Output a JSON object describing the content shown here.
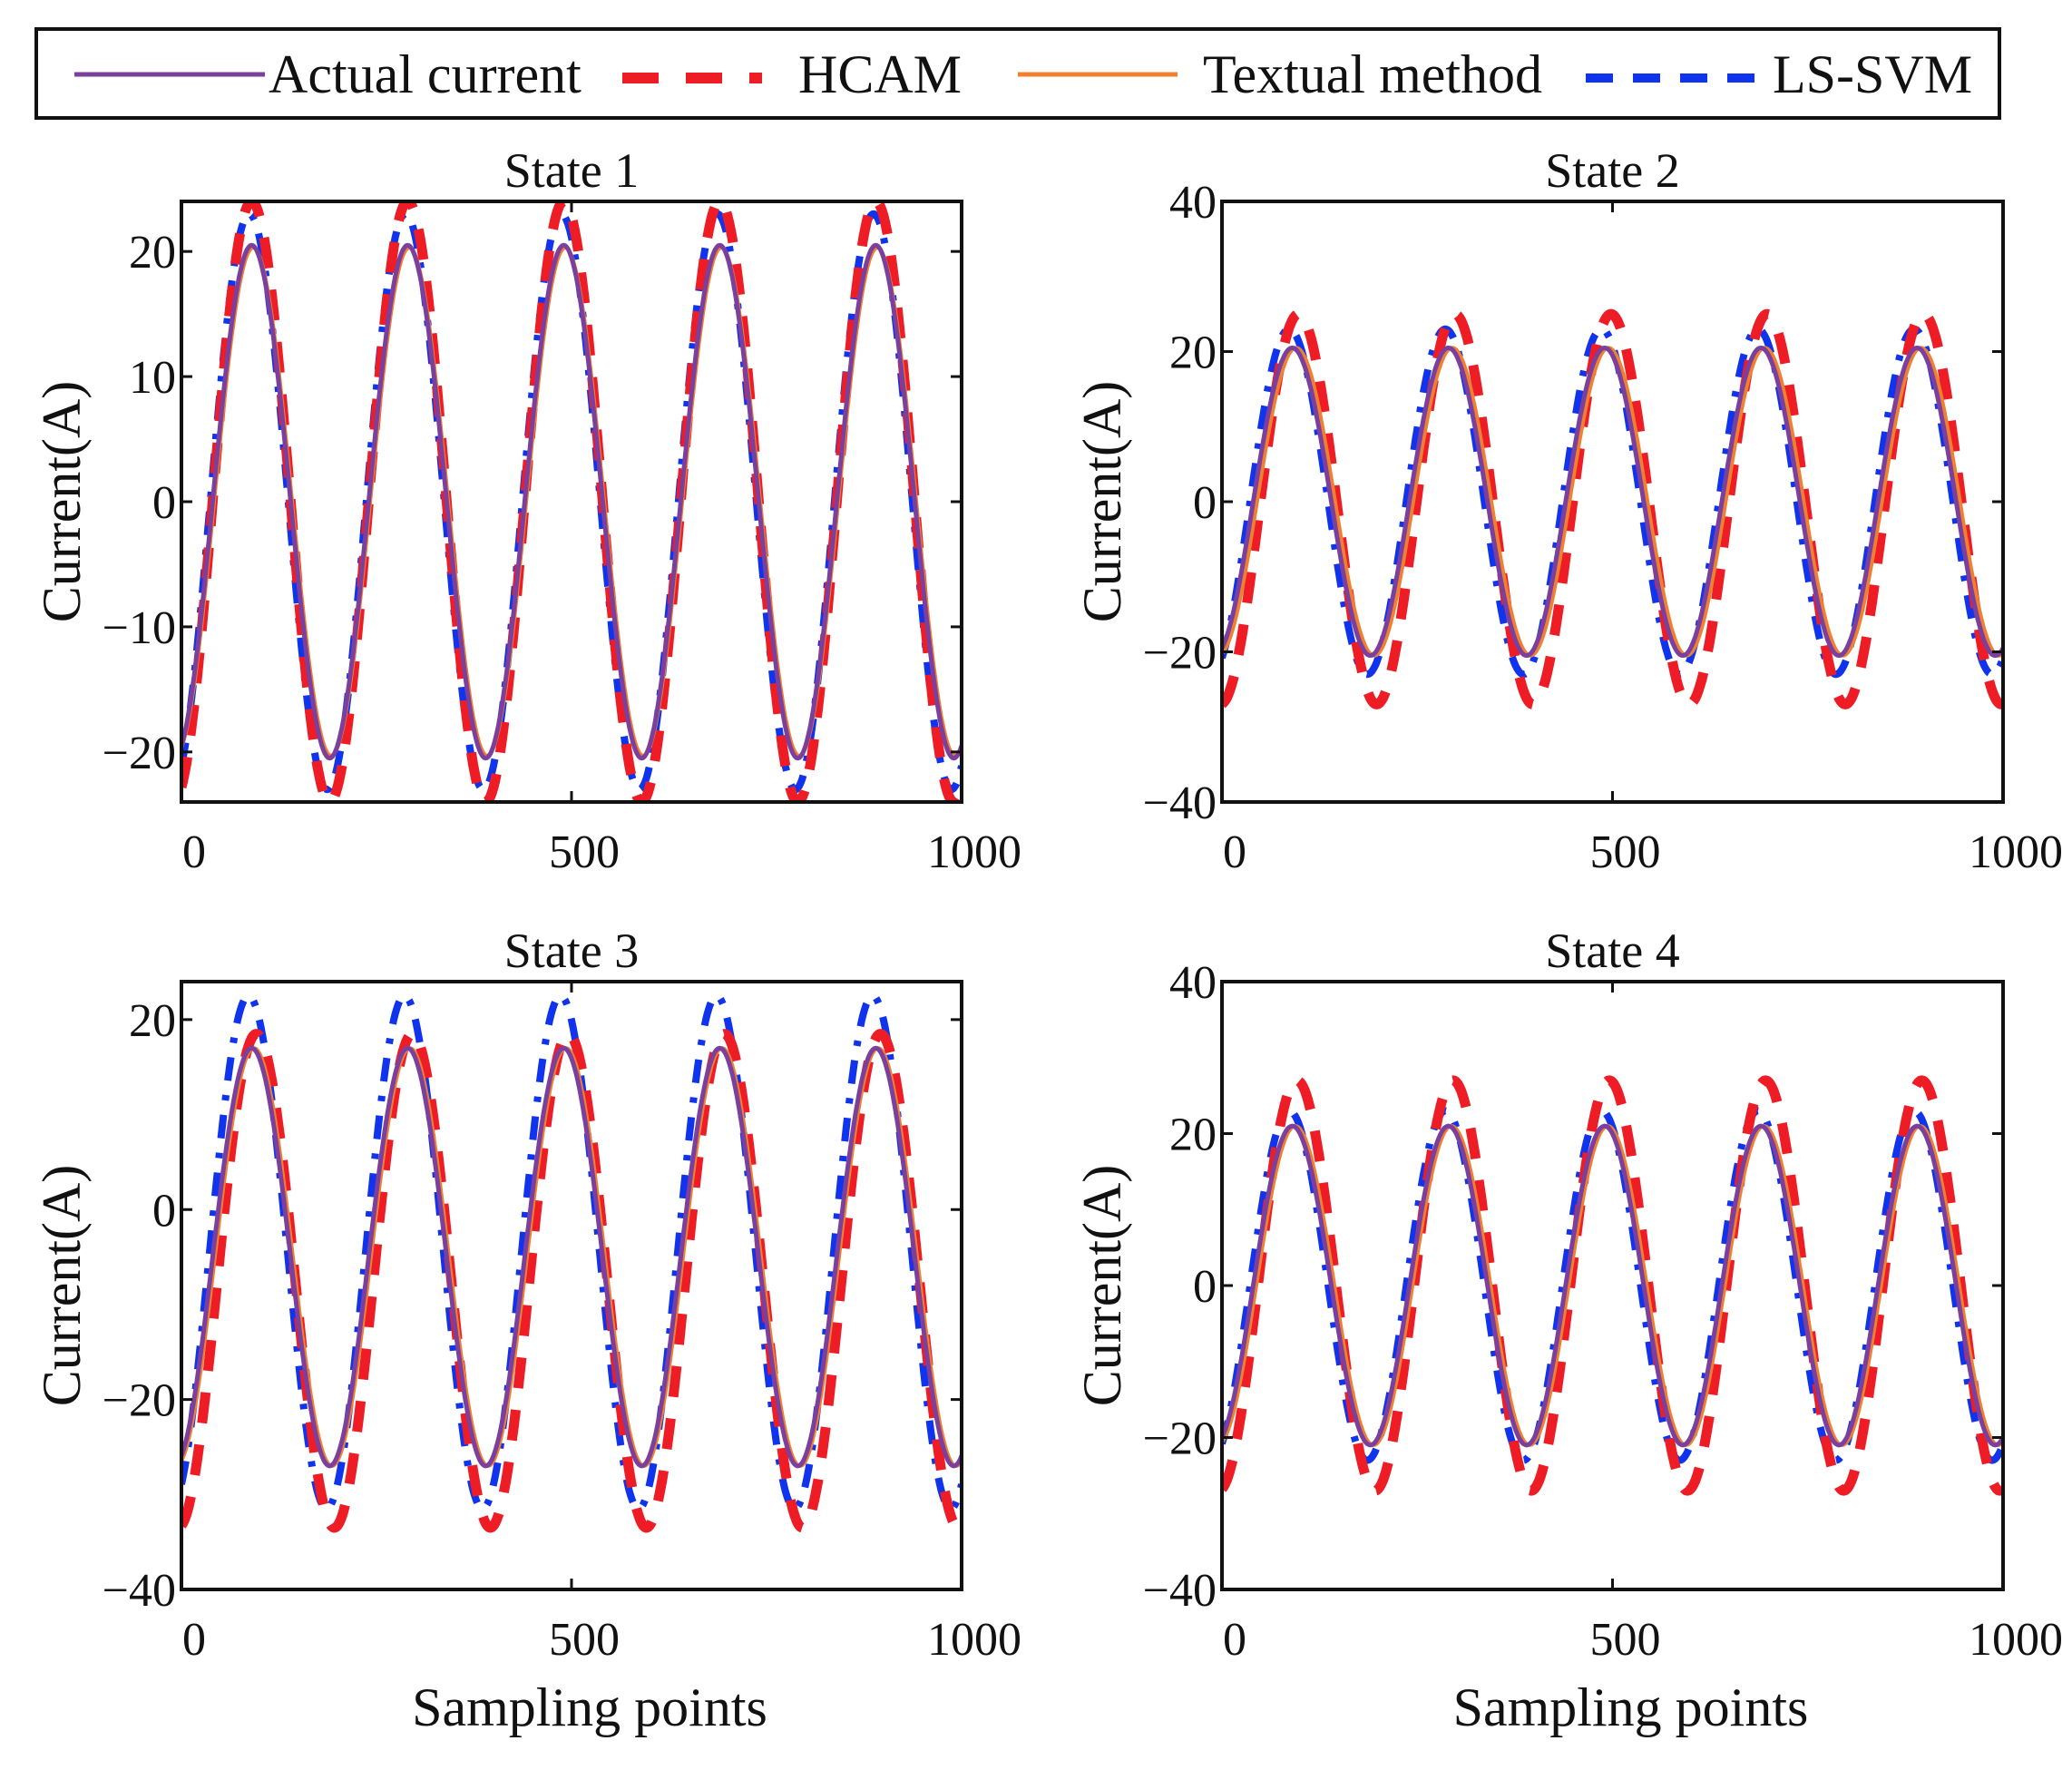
{
  "figure": {
    "legend": [
      {
        "label": "Actual current",
        "color": "#7b3f9e",
        "style": "solid"
      },
      {
        "label": "HCAM",
        "color": "#ee1c25",
        "style": "dash"
      },
      {
        "label": "Textual method",
        "color": "#f08030",
        "style": "solid"
      },
      {
        "label": "LS-SVM",
        "color": "#1034ee",
        "style": "dashdot"
      }
    ]
  },
  "chart_data": [
    {
      "type": "line",
      "title": "State 1",
      "xlabel": "",
      "ylabel": "Current(A)",
      "xlim": [
        0,
        1000
      ],
      "ylim": [
        -24,
        24
      ],
      "xticks": [
        0,
        500,
        1000
      ],
      "xtick_labels": [
        "0",
        "500",
        "1000"
      ],
      "yticks": [
        20,
        10,
        0,
        -10,
        -20
      ],
      "ytick_labels": [
        "20",
        "10",
        "0",
        "−10",
        "−20"
      ],
      "period": 200,
      "peak_at": 90,
      "series": [
        {
          "name": "Actual current",
          "amplitude": 20.5,
          "offset": 0,
          "shift": 0
        },
        {
          "name": "HCAM",
          "amplitude": 24,
          "offset": 0,
          "shift": 0
        },
        {
          "name": "Textual method",
          "amplitude": 20.3,
          "offset": 0,
          "shift": 2
        },
        {
          "name": "LS-SVM",
          "amplitude": 23,
          "offset": 0,
          "shift": -3
        }
      ]
    },
    {
      "type": "line",
      "title": "State 2",
      "xlabel": "",
      "ylabel": "Current(A)",
      "xlim": [
        0,
        1000
      ],
      "ylim": [
        -40,
        40
      ],
      "xticks": [
        0,
        500,
        1000
      ],
      "xtick_labels": [
        "0",
        "500",
        "1000"
      ],
      "yticks": [
        40,
        20,
        0,
        -20,
        -40
      ],
      "ytick_labels": [
        "40",
        "20",
        "0",
        "−20",
        "−40"
      ],
      "period": 200,
      "peak_at": 90,
      "series": [
        {
          "name": "Actual current",
          "amplitude": 20.5,
          "offset": 0,
          "shift": 0
        },
        {
          "name": "HCAM",
          "amplitude": 26,
          "offset": -1,
          "shift": 8
        },
        {
          "name": "Textual method",
          "amplitude": 20.5,
          "offset": 0,
          "shift": 5
        },
        {
          "name": "LS-SVM",
          "amplitude": 23,
          "offset": 0,
          "shift": -4
        }
      ]
    },
    {
      "type": "line",
      "title": "State 3",
      "xlabel": "",
      "ylabel": "Current(A)",
      "xlim": [
        0,
        1000
      ],
      "ylim": [
        -40,
        24
      ],
      "xticks": [
        0,
        500,
        1000
      ],
      "xtick_labels": [
        "0",
        "500",
        "1000"
      ],
      "yticks": [
        20,
        0,
        -20,
        -40
      ],
      "ytick_labels": [
        "20",
        "0",
        "−20",
        "−40"
      ],
      "period": 200,
      "peak_at": 90,
      "series": [
        {
          "name": "Actual current",
          "amplitude": 22,
          "offset": -5,
          "shift": 0
        },
        {
          "name": "HCAM",
          "amplitude": 26,
          "offset": -7.5,
          "shift": 6
        },
        {
          "name": "Textual method",
          "amplitude": 22,
          "offset": -5,
          "shift": 3
        },
        {
          "name": "LS-SVM",
          "amplitude": 27,
          "offset": -4.5,
          "shift": -4
        }
      ]
    },
    {
      "type": "line",
      "title": "State 4",
      "xlabel": "Sampling points",
      "ylabel": "Current(A)",
      "xlim": [
        0,
        1000
      ],
      "ylim": [
        -40,
        40
      ],
      "xticks": [
        0,
        500,
        1000
      ],
      "xtick_labels": [
        "0",
        "500",
        "1000"
      ],
      "yticks": [
        40,
        20,
        0,
        -20,
        -40
      ],
      "ytick_labels": [
        "40",
        "20",
        "0",
        "−20",
        "−40"
      ],
      "period": 200,
      "peak_at": 90,
      "series": [
        {
          "name": "Actual current",
          "amplitude": 21,
          "offset": 0,
          "shift": 0
        },
        {
          "name": "HCAM",
          "amplitude": 27,
          "offset": 0,
          "shift": 6
        },
        {
          "name": "Textual method",
          "amplitude": 21,
          "offset": 0,
          "shift": 4
        },
        {
          "name": "LS-SVM",
          "amplitude": 23,
          "offset": 0,
          "shift": -4
        }
      ]
    }
  ],
  "panel_xlabels": [
    "",
    "",
    "Sampling points",
    "Sampling points"
  ]
}
